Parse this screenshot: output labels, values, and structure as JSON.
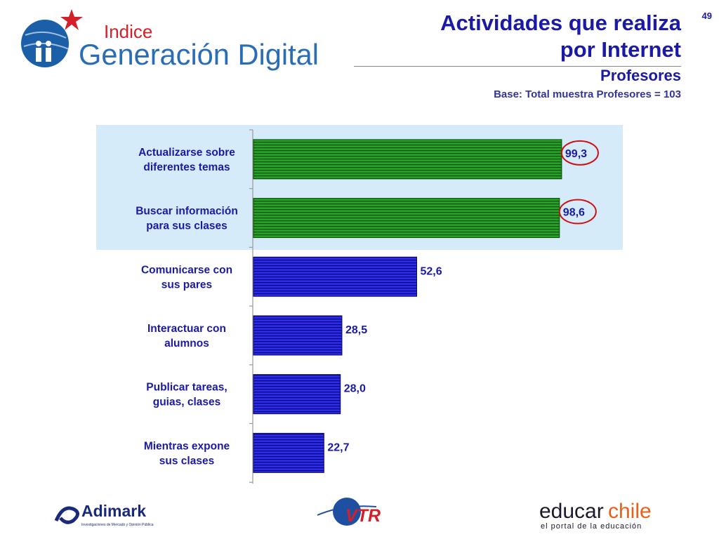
{
  "header": {
    "brand_small": "Indice",
    "brand_large": "Generación Digital",
    "title_line1": "Actividades que realiza",
    "title_line2": "por Internet",
    "subtitle": "Profesores",
    "base_note": "Base: Total muestra Profesores = 103",
    "page_number": "49"
  },
  "chart_data": {
    "type": "bar",
    "orientation": "horizontal",
    "categories": [
      [
        "Actualizarse sobre",
        "diferentes temas"
      ],
      [
        "Buscar información",
        "para sus clases"
      ],
      [
        "Comunicarse con",
        "sus pares"
      ],
      [
        "Interactuar con",
        "alumnos"
      ],
      [
        "Publicar tareas,",
        "guias, clases"
      ],
      [
        "Mientras expone",
        "sus clases"
      ]
    ],
    "values": [
      99.3,
      98.6,
      52.6,
      28.5,
      28.0,
      22.7
    ],
    "data_labels": [
      "99,3",
      "98,6",
      "52,6",
      "28,5",
      "28,0",
      "22,7"
    ],
    "highlighted": [
      true,
      true,
      false,
      false,
      false,
      false
    ],
    "colors": {
      "highlight": "#1f9a1f",
      "normal": "#2a2aee",
      "panel": "#d6ebfa",
      "label": "#1a1aa6",
      "circle": "#d01010"
    },
    "xlim": [
      0,
      100
    ],
    "grid": false
  },
  "footer": {
    "adimark_name": "Adimark",
    "adimark_tagline": "Investigaciones de Mercado y Opinión Pública",
    "vtr_name": "VTR",
    "educar_part1": "educar",
    "educar_part2": "chile",
    "educar_tagline": "el portal de la educación"
  }
}
